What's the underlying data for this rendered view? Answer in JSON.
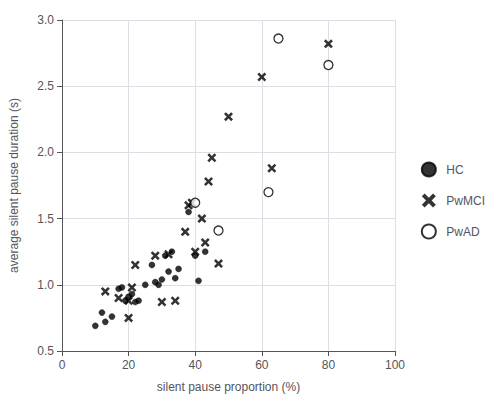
{
  "chart_data": {
    "type": "scatter",
    "x_label": "silent pause proportion (%)",
    "y_label": "average silent pause duration (s)",
    "xlim": [
      0,
      100
    ],
    "ylim": [
      0.5,
      3.0
    ],
    "xticks": [
      0,
      20,
      40,
      60,
      80,
      100
    ],
    "yticks": [
      0.5,
      {
        "value": 1.0,
        "label": "1.0"
      },
      1.5,
      {
        "value": 2.0,
        "label": "2.0"
      },
      2.5,
      {
        "value": 3.0,
        "label": "3.0"
      }
    ],
    "grid": true,
    "legend": "right",
    "series": [
      {
        "name": "HC",
        "color": "black",
        "marker": "circle",
        "x": [
          10,
          12,
          13,
          15,
          17,
          18,
          19,
          20,
          21,
          22,
          23,
          25,
          27,
          28,
          29,
          30,
          31,
          32,
          33,
          34,
          35,
          38,
          40,
          41,
          43
        ],
        "values": [
          0.69,
          0.79,
          0.72,
          0.76,
          0.97,
          0.98,
          0.88,
          0.91,
          0.93,
          0.87,
          0.88,
          1.0,
          1.15,
          1.02,
          1.0,
          1.04,
          1.22,
          1.1,
          1.25,
          1.05,
          1.12,
          1.55,
          1.22,
          1.03,
          1.25
        ]
      },
      {
        "name": "PwMCI",
        "color": "black",
        "marker": "x",
        "x": [
          13,
          17,
          20,
          20,
          21,
          22,
          28,
          30,
          32,
          34,
          37,
          38,
          39,
          40,
          42,
          43,
          44,
          45,
          47,
          50,
          60,
          63,
          80
        ],
        "values": [
          0.95,
          0.9,
          0.75,
          0.88,
          0.98,
          1.15,
          1.22,
          0.87,
          1.23,
          0.88,
          1.4,
          1.6,
          1.62,
          1.25,
          1.5,
          1.32,
          1.78,
          1.96,
          1.16,
          2.27,
          2.57,
          1.88,
          2.82
        ]
      },
      {
        "name": "PwAD",
        "color": "black",
        "marker": "open_circle",
        "x": [
          40,
          47,
          62,
          65,
          80
        ],
        "values": [
          1.62,
          1.41,
          1.7,
          2.86,
          2.66
        ]
      }
    ]
  }
}
